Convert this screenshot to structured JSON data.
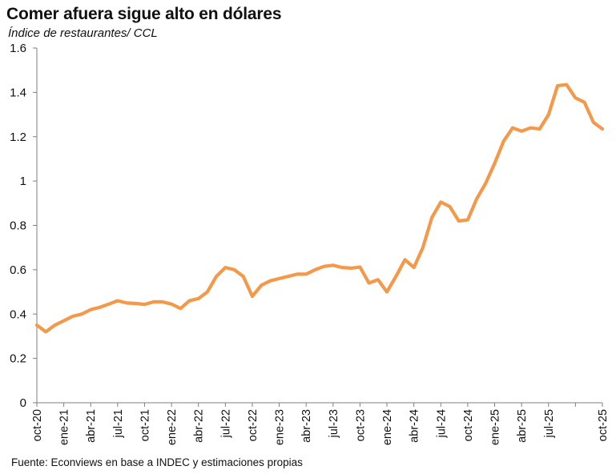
{
  "chart_data": {
    "type": "line",
    "title": "Comer afuera sigue alto en dólares",
    "subtitle": "Índice de restaurantes/ CCL",
    "source": "Fuente: Econviews en base a INDEC y estimaciones propias",
    "xlabel": "",
    "ylabel": "",
    "ylim": [
      0,
      1.6
    ],
    "yticks": [
      0,
      0.2,
      0.4,
      0.6,
      0.8,
      1,
      1.2,
      1.4,
      1.6
    ],
    "ytick_labels": [
      "0",
      "0.2",
      "0.4",
      "0.6",
      "0.8",
      "1",
      "1.2",
      "1.4",
      "1.6"
    ],
    "xtick_labels": [
      "oct-20",
      "ene-21",
      "abr-21",
      "jul-21",
      "oct-21",
      "ene-22",
      "abr-22",
      "jul-22",
      "oct-22",
      "ene-23",
      "abr-23",
      "jul-23",
      "oct-23",
      "ene-24",
      "abr-24",
      "jul-24",
      "oct-24",
      "ene-25",
      "abr-25",
      "jul-25",
      "oct-25"
    ],
    "grid": false,
    "line_color": "#F4984A",
    "series": [
      {
        "name": "Índice de restaurantes/ CCL",
        "values": [
          0.35,
          0.32,
          0.35,
          0.37,
          0.39,
          0.4,
          0.42,
          0.43,
          0.445,
          0.46,
          0.45,
          0.448,
          0.444,
          0.455,
          0.455,
          0.445,
          0.425,
          0.46,
          0.47,
          0.5,
          0.57,
          0.61,
          0.6,
          0.57,
          0.48,
          0.53,
          0.55,
          0.56,
          0.57,
          0.58,
          0.58,
          0.6,
          0.615,
          0.62,
          0.61,
          0.607,
          0.612,
          0.54,
          0.555,
          0.5,
          0.57,
          0.645,
          0.61,
          0.7,
          0.835,
          0.905,
          0.885,
          0.82,
          0.825,
          0.92,
          0.99,
          1.08,
          1.18,
          1.24,
          1.225,
          1.24,
          1.235,
          1.3,
          1.43,
          1.435,
          1.375,
          1.355,
          1.265,
          1.235
        ]
      }
    ]
  }
}
